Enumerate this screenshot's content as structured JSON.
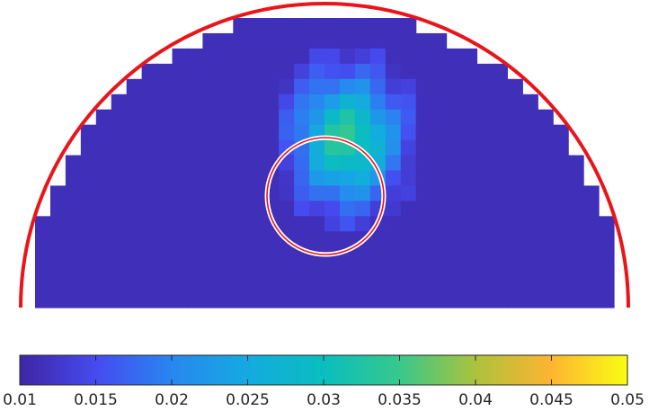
{
  "chart_data": {
    "type": "heatmap",
    "title": "",
    "xlabel": "",
    "ylabel": "",
    "colormap": "parula",
    "clim": [
      0.01,
      0.05
    ],
    "colorbar": {
      "orientation": "horizontal",
      "location": "bottom",
      "ticks": [
        0.01,
        0.015,
        0.02,
        0.025,
        0.03,
        0.035,
        0.04,
        0.045,
        0.05
      ],
      "tick_labels": [
        "0.01",
        "0.015",
        "0.02",
        "0.025",
        "0.03",
        "0.035",
        "0.04",
        "0.045",
        "0.05"
      ]
    },
    "domain": "half-disk",
    "background_value": 0.0112,
    "grid_columns": 38,
    "grid_rows": 19,
    "anomaly": {
      "description_value_peak": 0.034,
      "center_col": 20.5,
      "center_row": 8.0,
      "radius_cols": 3.9,
      "radius_rows": 4.8
    },
    "overlays": {
      "outer_boundary_color": "#e8151b",
      "inclusion_outline_color": "#e8151b"
    }
  }
}
